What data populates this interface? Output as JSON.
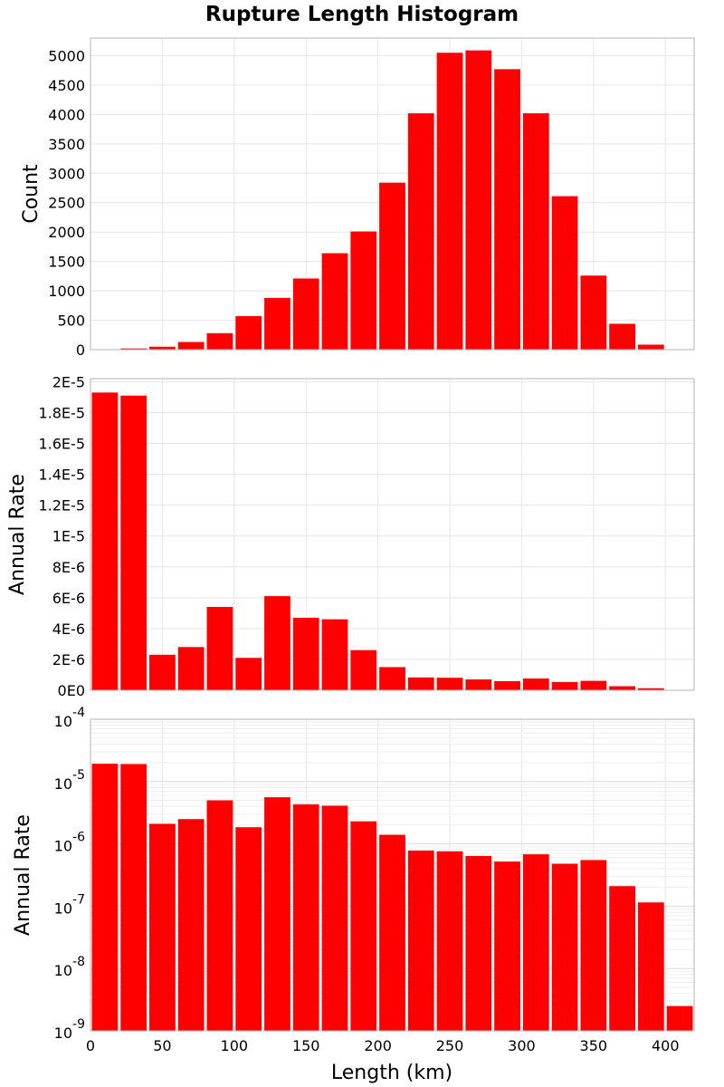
{
  "chart_data": {
    "title": "Rupture Length Histogram",
    "xlabel": "Length (km)",
    "colors": {
      "bar": "#ff0000",
      "grid": "#e6e6e6",
      "frame": "#b4b4b4"
    },
    "x_ticks": [
      "0",
      "50",
      "100",
      "150",
      "200",
      "250",
      "300",
      "350",
      "400"
    ],
    "x_tick_values": [
      0,
      50,
      100,
      150,
      200,
      250,
      300,
      350,
      400
    ],
    "xlim": [
      0,
      420
    ],
    "bin_width": 20,
    "bin_starts": [
      0,
      20,
      40,
      60,
      80,
      100,
      120,
      140,
      160,
      180,
      200,
      220,
      240,
      260,
      280,
      300,
      320,
      340,
      360,
      380,
      400
    ],
    "panels": [
      {
        "type": "bar",
        "ylabel": "Count",
        "scale": "linear",
        "ylim": [
          0,
          5300
        ],
        "grid": true,
        "y_ticks": [
          "0",
          "500",
          "1000",
          "1500",
          "2000",
          "2500",
          "3000",
          "3500",
          "4000",
          "4500",
          "5000"
        ],
        "y_tick_values": [
          0,
          500,
          1000,
          1500,
          2000,
          2500,
          3000,
          3500,
          4000,
          4500,
          5000
        ],
        "values": [
          5,
          20,
          50,
          130,
          280,
          570,
          880,
          1210,
          1640,
          2010,
          2840,
          4020,
          5050,
          5090,
          4770,
          4020,
          2610,
          1260,
          440,
          85,
          0
        ]
      },
      {
        "type": "bar",
        "ylabel": "Annual Rate",
        "scale": "linear",
        "ylim": [
          0,
          2.02e-05
        ],
        "grid": true,
        "y_ticks": [
          "0E0",
          "2E-6",
          "4E-6",
          "6E-6",
          "8E-6",
          "1E-5",
          "1.2E-5",
          "1.4E-5",
          "1.6E-5",
          "1.8E-5",
          "2E-5"
        ],
        "y_tick_values": [
          0,
          2e-06,
          4e-06,
          6e-06,
          8e-06,
          1e-05,
          1.2e-05,
          1.4e-05,
          1.6e-05,
          1.8e-05,
          2e-05
        ],
        "values": [
          1.93e-05,
          1.91e-05,
          2.3e-06,
          2.8e-06,
          5.4e-06,
          2.1e-06,
          6.1e-06,
          4.7e-06,
          4.6e-06,
          2.6e-06,
          1.5e-06,
          8.3e-07,
          8.1e-07,
          7e-07,
          5.9e-07,
          7.6e-07,
          5.3e-07,
          6.1e-07,
          2.6e-07,
          1.3e-07,
          0
        ]
      },
      {
        "type": "bar",
        "ylabel": "Annual Rate",
        "scale": "log",
        "ylim": [
          1e-09,
          0.0001
        ],
        "grid": true,
        "y_ticks": [
          {
            "base": "10",
            "exp": "-9"
          },
          {
            "base": "10",
            "exp": "-8"
          },
          {
            "base": "10",
            "exp": "-7"
          },
          {
            "base": "10",
            "exp": "-6"
          },
          {
            "base": "10",
            "exp": "-5"
          },
          {
            "base": "10",
            "exp": "-4"
          }
        ],
        "y_tick_values": [
          1e-09,
          1e-08,
          1e-07,
          1e-06,
          1e-05,
          0.0001
        ],
        "values": [
          1.93e-05,
          1.91e-05,
          2.1e-06,
          2.5e-06,
          5e-06,
          1.85e-06,
          5.6e-06,
          4.3e-06,
          4.1e-06,
          2.3e-06,
          1.4e-06,
          7.8e-07,
          7.6e-07,
          6.4e-07,
          5.2e-07,
          6.8e-07,
          4.8e-07,
          5.5e-07,
          2.1e-07,
          1.15e-07,
          2.5e-09
        ]
      }
    ]
  }
}
